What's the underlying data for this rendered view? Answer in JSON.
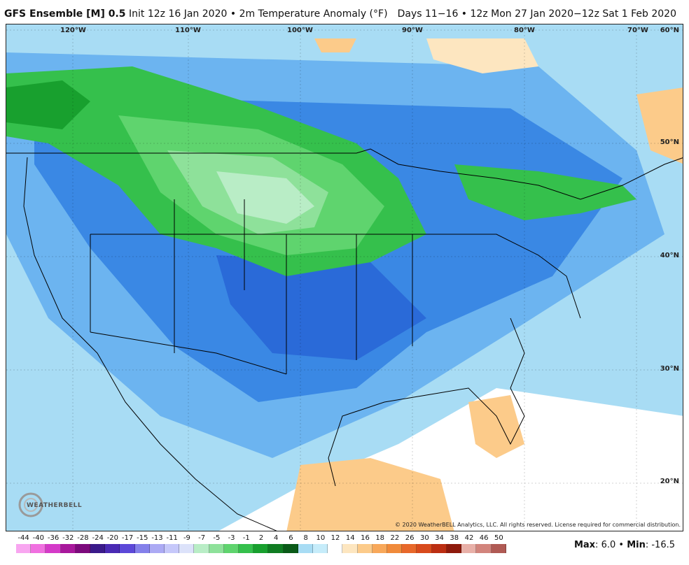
{
  "header": {
    "model": "GFS Ensemble [M] 0.5",
    "init": "Init 12z 16 Jan 2020",
    "separator": "•",
    "field": "2m Temperature Anomaly (°F)",
    "valid": "Days 11−16 • 12z Mon 27 Jan 2020−12z Sat 1 Feb 2020"
  },
  "map": {
    "longitude_labels": [
      "120°W",
      "110°W",
      "100°W",
      "90°W",
      "80°W",
      "70°W"
    ],
    "latitude_labels": [
      "60°N",
      "50°N",
      "40°N",
      "30°N",
      "20°N"
    ],
    "copyright": "© 2020 WeatherBELL Analytics, LLC. All rights reserved. License required for commercial distribution.",
    "logo_text": "WEATHERBELL"
  },
  "legend": {
    "labels": [
      "-44",
      "-40",
      "-36",
      "-32",
      "-28",
      "-24",
      "-20",
      "-17",
      "-15",
      "-13",
      "-11",
      "-9",
      "-7",
      "-5",
      "-3",
      "-1",
      "2",
      "4",
      "6",
      "8",
      "10",
      "12",
      "14",
      "16",
      "18",
      "22",
      "26",
      "30",
      "34",
      "38",
      "42",
      "46",
      "50"
    ],
    "colors": [
      "#f8a6f0",
      "#f070e0",
      "#d43ac8",
      "#a8189c",
      "#7c0a7c",
      "#3a1a8a",
      "#4a2ab4",
      "#5c48d8",
      "#8480ea",
      "#acaaf4",
      "#c6c8fa",
      "#dce2fa",
      "#b9edc6",
      "#8ee19a",
      "#5fd46e",
      "#35c04c",
      "#18a02e",
      "#107c22",
      "#0a5a18",
      "#a8dcf4",
      "#c6ecfa",
      "#ffffff",
      "#fde6c0",
      "#fccb8a",
      "#f8a85a",
      "#f08a3a",
      "#e8682a",
      "#d84a1c",
      "#bc2e12",
      "#8e1a0c",
      "#e8b0a8",
      "#d2847c",
      "#b05a54"
    ]
  },
  "stats": {
    "max_label": "Max",
    "max_value": "6.0",
    "min_label": "Min",
    "min_value": "-16.5"
  }
}
